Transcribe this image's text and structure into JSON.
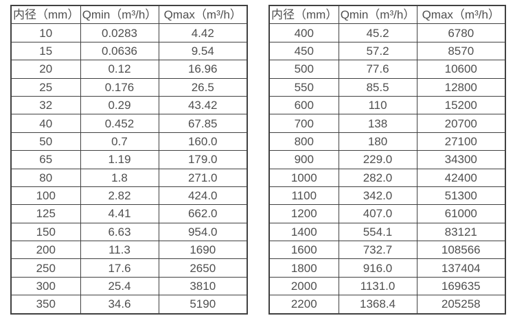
{
  "page": {
    "background": "#ffffff",
    "description": "Two side-by-side flow rate specification tables"
  },
  "colors": {
    "border": "#404040",
    "text": "#4f4f4f"
  },
  "tables": [
    {
      "name": "flow-rate-table-small-diameters",
      "headers": [
        "内径（mm）",
        "Qmin（m³/h）",
        "Qmax（m³/h）"
      ],
      "rows": [
        [
          "10",
          "0.0283",
          "4.42"
        ],
        [
          "15",
          "0.0636",
          "9.54"
        ],
        [
          "20",
          "0.12",
          "16.96"
        ],
        [
          "25",
          "0.176",
          "26.5"
        ],
        [
          "32",
          "0.29",
          "43.42"
        ],
        [
          "40",
          "0.452",
          "67.85"
        ],
        [
          "50",
          "0.7",
          "160.0"
        ],
        [
          "65",
          "1.19",
          "179.0"
        ],
        [
          "80",
          "1.8",
          "271.0"
        ],
        [
          "100",
          "2.82",
          "424.0"
        ],
        [
          "125",
          "4.41",
          "662.0"
        ],
        [
          "150",
          "6.63",
          "954.0"
        ],
        [
          "200",
          "11.3",
          "1690"
        ],
        [
          "250",
          "17.6",
          "2650"
        ],
        [
          "300",
          "25.4",
          "3810"
        ],
        [
          "350",
          "34.6",
          "5190"
        ]
      ]
    },
    {
      "name": "flow-rate-table-large-diameters",
      "headers": [
        "内径（mm）",
        "Qmin（m³/h）",
        "Qmax（m³/h）"
      ],
      "rows": [
        [
          "400",
          "45.2",
          "6780"
        ],
        [
          "450",
          "57.2",
          "8570"
        ],
        [
          "500",
          "77.6",
          "10600"
        ],
        [
          "550",
          "85.5",
          "12800"
        ],
        [
          "600",
          "110",
          "15200"
        ],
        [
          "700",
          "138",
          "20700"
        ],
        [
          "800",
          "180",
          "27100"
        ],
        [
          "900",
          "229.0",
          "34300"
        ],
        [
          "1000",
          "282.0",
          "42400"
        ],
        [
          "1100",
          "342.0",
          "51300"
        ],
        [
          "1200",
          "407.0",
          "61000"
        ],
        [
          "1400",
          "554.1",
          "83121"
        ],
        [
          "1600",
          "732.7",
          "108566"
        ],
        [
          "1800",
          "916.0",
          "137404"
        ],
        [
          "2000",
          "1131.0",
          "169635"
        ],
        [
          "2200",
          "1368.4",
          "205258"
        ]
      ]
    }
  ]
}
